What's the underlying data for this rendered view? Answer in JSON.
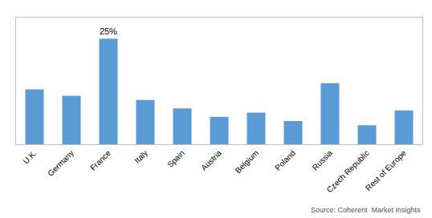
{
  "chart_data": {
    "type": "bar",
    "categories": [
      "U.K.",
      "Germany",
      "France",
      "Italy",
      "Spain",
      "Austria",
      "Belgium",
      "Poland",
      "Russia",
      "Czech Republic",
      "Rest of Europe"
    ],
    "values": [
      13.0,
      11.5,
      25.0,
      10.5,
      8.5,
      6.5,
      7.5,
      5.5,
      14.5,
      4.5,
      8.0
    ],
    "value_labels": [
      null,
      null,
      "25%",
      null,
      null,
      null,
      null,
      null,
      null,
      null,
      null
    ],
    "color": "#5b9bd5",
    "ylim": [
      0,
      30
    ],
    "yticks": [],
    "tick_labels": "x",
    "grid": false,
    "source": "Source: Coherent  Market Insights"
  }
}
